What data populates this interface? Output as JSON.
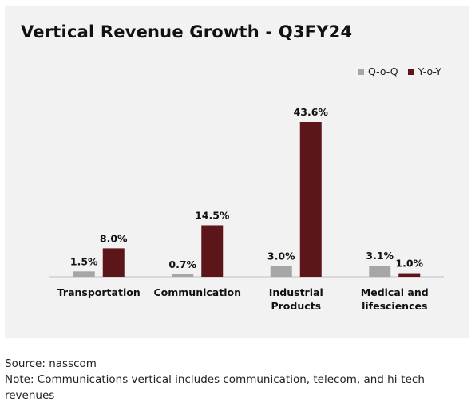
{
  "chart_data": {
    "type": "bar",
    "title": "Vertical Revenue Growth - Q3FY24",
    "categories": [
      [
        "Transportation"
      ],
      [
        "Communication"
      ],
      [
        "Industrial",
        "Products"
      ],
      [
        "Medical and",
        "lifesciences"
      ]
    ],
    "series": [
      {
        "name": "Q-o-Q",
        "values": [
          1.5,
          0.7,
          3.0,
          3.1
        ],
        "labels": [
          "1.5%",
          "0.7%",
          "3.0%",
          "3.1%"
        ],
        "color": "#a6a6a6"
      },
      {
        "name": "Y-o-Y",
        "values": [
          8.0,
          14.5,
          43.6,
          1.0
        ],
        "labels": [
          "8.0%",
          "14.5%",
          "43.6%",
          "1.0%"
        ],
        "color": "#5c1518"
      }
    ],
    "ylim": [
      0,
      43.6
    ],
    "legend_position": "top-right",
    "grid": false
  },
  "footer": {
    "source": "Source: nasscom",
    "note": "Note: Communications vertical includes communication, telecom, and hi-tech revenues"
  }
}
